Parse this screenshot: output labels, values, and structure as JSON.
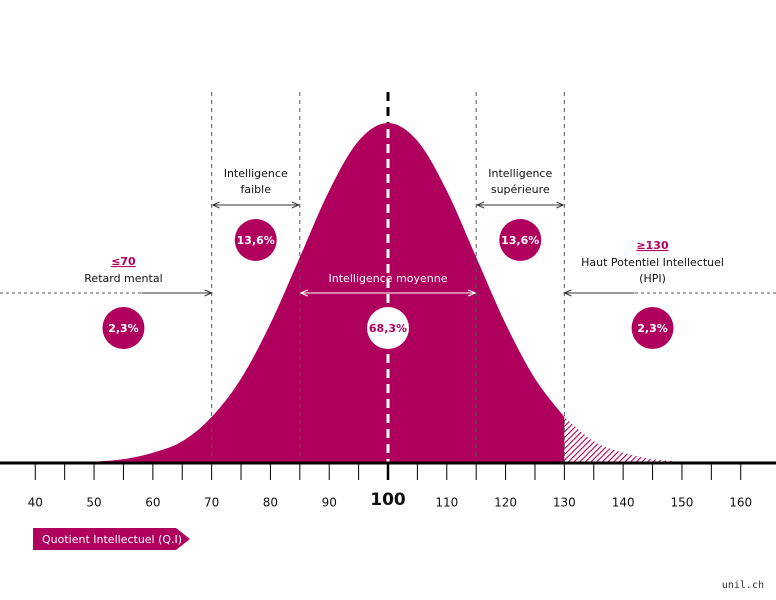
{
  "chart_data": {
    "type": "bell",
    "color": "#b0005e",
    "x": [
      40,
      45,
      50,
      55,
      60,
      65,
      70,
      75,
      80,
      85,
      90,
      95,
      100,
      105,
      110,
      115,
      120,
      125,
      130,
      135,
      140,
      145,
      150,
      155,
      160
    ],
    "values": [
      0.0,
      0.0,
      0.01,
      0.03,
      0.08,
      0.17,
      0.36,
      0.66,
      1.09,
      1.61,
      2.13,
      2.52,
      2.66,
      2.52,
      2.13,
      1.61,
      1.09,
      0.66,
      0.36,
      0.17,
      0.08,
      0.03,
      0.01,
      0.0,
      0.0
    ],
    "xlim": [
      34,
      166
    ],
    "ylim": [
      0,
      2.66
    ],
    "xticks": [
      40,
      50,
      60,
      70,
      80,
      90,
      100,
      110,
      120,
      130,
      140,
      150,
      160
    ],
    "xminorticks": [
      45,
      55,
      65,
      75,
      85,
      95,
      105,
      115,
      125,
      135,
      145,
      155
    ],
    "mean": 100,
    "hatch_from": 130,
    "xlabel": "Quotient Intellectuel (Q.I)",
    "regions": [
      {
        "qualifier": "≤70",
        "label": [
          "Retard mental"
        ],
        "to": 70,
        "value": 2.3,
        "value_label": "2,3%"
      },
      {
        "label": [
          "Intelligence",
          "faible"
        ],
        "from": 70,
        "to": 85,
        "value": 13.6,
        "value_label": "13,6%"
      },
      {
        "label": [
          "Intelligence moyenne"
        ],
        "from": 85,
        "to": 115,
        "value": 68.3,
        "value_label": "68,3%"
      },
      {
        "label": [
          "Intelligence",
          "supérieure"
        ],
        "from": 115,
        "to": 130,
        "value": 13.6,
        "value_label": "13,6%"
      },
      {
        "qualifier": "≥130",
        "label": [
          "Haut Potentiel Intellectuel",
          "(HPI)"
        ],
        "from": 130,
        "value": 2.3,
        "value_label": "2,3%"
      }
    ],
    "watermark": "unil.ch"
  }
}
